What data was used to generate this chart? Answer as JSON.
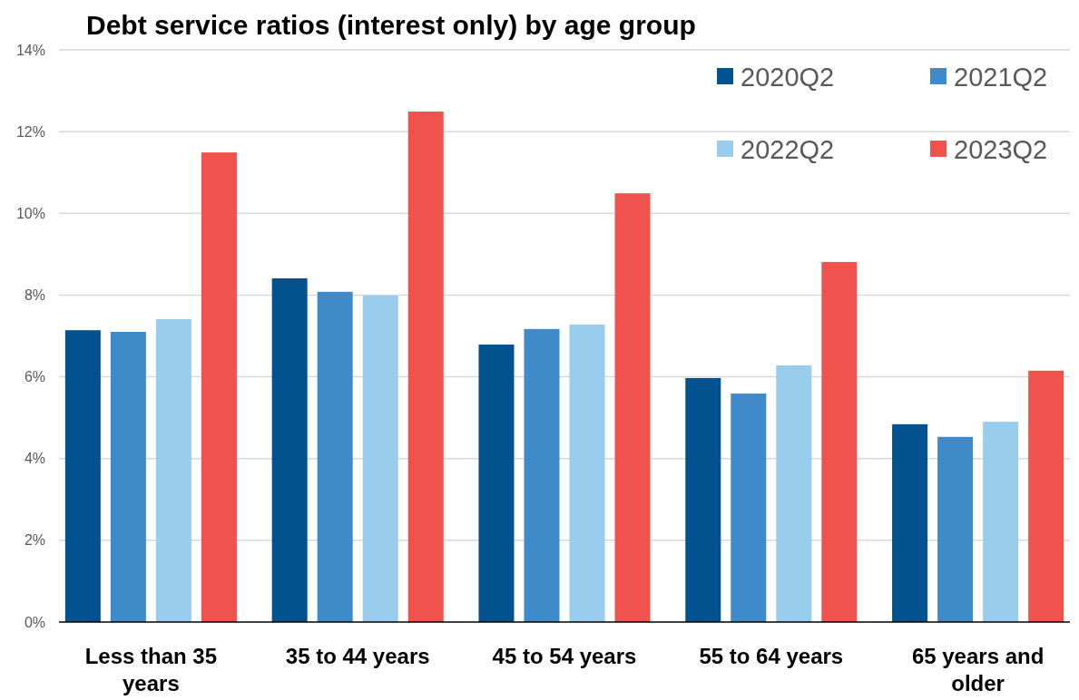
{
  "chart_data": {
    "type": "bar",
    "title": "Debt service ratios (interest only) by age group",
    "categories": [
      "Less than 35 years",
      "35 to 44 years",
      "45 to 54 years",
      "55 to 64 years",
      "65 years and older"
    ],
    "series": [
      {
        "name": "2020Q2",
        "color": "#02528f",
        "values": [
          7.14,
          8.41,
          6.79,
          5.97,
          4.84
        ]
      },
      {
        "name": "2021Q2",
        "color": "#3f8bca",
        "values": [
          7.1,
          8.08,
          7.17,
          5.59,
          4.53
        ]
      },
      {
        "name": "2022Q2",
        "color": "#99cdee",
        "values": [
          7.41,
          7.99,
          7.28,
          6.28,
          4.9
        ]
      },
      {
        "name": "2023Q2",
        "color": "#f0524d",
        "values": [
          11.49,
          12.49,
          10.49,
          8.81,
          6.15
        ]
      }
    ],
    "ylim": [
      0,
      14
    ],
    "yticks": [
      {
        "value": 0,
        "label": "0%"
      },
      {
        "value": 2,
        "label": "2%"
      },
      {
        "value": 4,
        "label": "4%"
      },
      {
        "value": 6,
        "label": "6%"
      },
      {
        "value": 8,
        "label": "8%"
      },
      {
        "value": 10,
        "label": "10%"
      },
      {
        "value": 12,
        "label": "12%"
      },
      {
        "value": 14,
        "label": "14%"
      }
    ],
    "grid": "y",
    "legend": "top right"
  }
}
